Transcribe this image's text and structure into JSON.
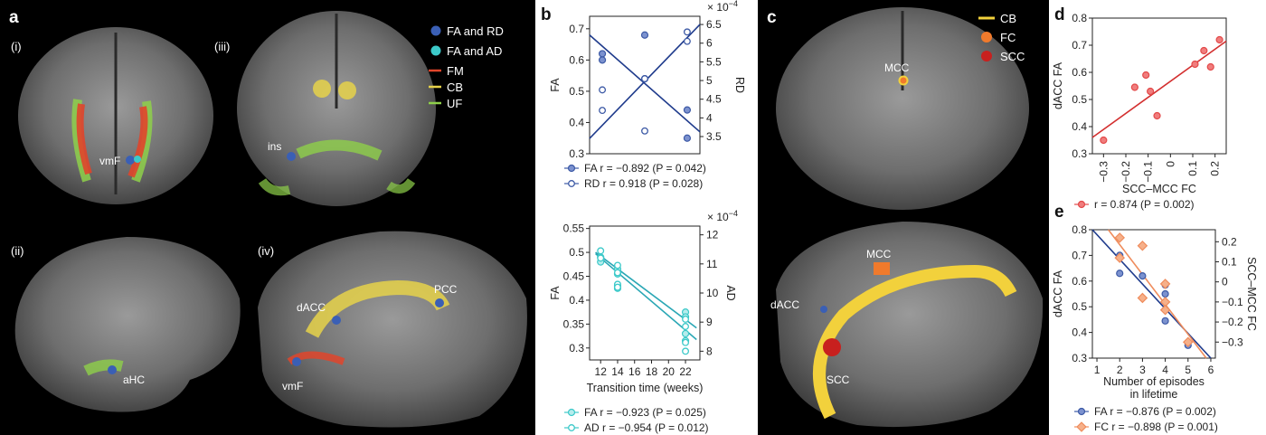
{
  "panel_a": {
    "letter": "a",
    "sublabels": [
      "(i)",
      "(iii)",
      "(ii)",
      "(iv)"
    ],
    "legend": [
      {
        "label": "FA and RD",
        "color": "#3a5fb5",
        "kind": "dot"
      },
      {
        "label": "FA and AD",
        "color": "#3cc9c9",
        "kind": "dot"
      },
      {
        "label": "FM",
        "color": "#e0452b",
        "kind": "line"
      },
      {
        "label": "CB",
        "color": "#e6d24a",
        "kind": "line"
      },
      {
        "label": "UF",
        "color": "#8ed04a",
        "kind": "line"
      }
    ],
    "region_labels": {
      "vmF_i": "vmF",
      "ins": "ins",
      "aHC": "aHC",
      "dACC": "dACC",
      "PCC": "PCC",
      "vmF_iv": "vmF"
    }
  },
  "panel_c": {
    "letter": "c",
    "legend": [
      {
        "label": "CB",
        "color": "#f2d13c",
        "kind": "line"
      },
      {
        "label": "FC",
        "color": "#f07a2c",
        "kind": "dot"
      },
      {
        "label": "SCC",
        "color": "#c8201e",
        "kind": "dot"
      }
    ],
    "region_labels": {
      "MCC_top": "MCC",
      "MCC_mid": "MCC",
      "dACC": "dACC",
      "SCC": "SCC"
    }
  },
  "chart_data": [
    {
      "panel": "b",
      "letter": "b",
      "type": "scatter",
      "xlabel": "",
      "ylabel": "FA",
      "ylabel_right": "RD",
      "right_axis_exponent": "× 10",
      "right_axis_exponent_power": "−4",
      "ylim": [
        0.3,
        0.74
      ],
      "yticks": [
        0.3,
        0.4,
        0.5,
        0.6,
        0.7
      ],
      "ylim_right": [
        3.04,
        6.72
      ],
      "yticks_right": [
        3.5,
        4.0,
        4.5,
        5.0,
        5.5,
        6.0,
        6.5
      ],
      "x": [
        0,
        1,
        2
      ],
      "series": [
        {
          "name": "FA",
          "axis": "left",
          "marker": "filled",
          "color": "#3d5aa6",
          "x": [
            0,
            0,
            1,
            1,
            2,
            2
          ],
          "y": [
            0.62,
            0.6,
            0.68,
            0.54,
            0.44,
            0.35
          ]
        },
        {
          "name": "RD",
          "axis": "right",
          "marker": "open",
          "color": "#3d5aa6",
          "x": [
            0,
            0,
            1,
            1,
            2,
            2
          ],
          "y": [
            4.75,
            4.2,
            3.65,
            5.05,
            6.3,
            6.05
          ]
        }
      ],
      "fits": [
        {
          "axis": "left",
          "color": "#1f3b8c",
          "x": [
            -0.3,
            2.3
          ],
          "y": [
            0.68,
            0.37
          ]
        },
        {
          "axis": "right",
          "color": "#1f3b8c",
          "x": [
            -0.3,
            2.3
          ],
          "y": [
            3.45,
            6.5
          ]
        }
      ],
      "legend": [
        {
          "label": "FA r = −0.892 (P = 0.042)",
          "marker": "filled",
          "color": "#3d5aa6"
        },
        {
          "label": "RD r = 0.918 (P = 0.028)",
          "marker": "open",
          "color": "#3d5aa6"
        }
      ]
    },
    {
      "panel": "b2",
      "type": "scatter",
      "xlabel": "Transition time (weeks)",
      "ylabel": "FA",
      "ylabel_right": "AD",
      "right_axis_exponent": "× 10",
      "right_axis_exponent_power": "−4",
      "xlim": [
        10.7,
        23.7
      ],
      "xticks": [
        12,
        14,
        16,
        18,
        20,
        22
      ],
      "ylim": [
        0.275,
        0.555
      ],
      "yticks": [
        0.3,
        0.35,
        0.4,
        0.45,
        0.5,
        0.55
      ],
      "ylim_right": [
        7.7,
        12.3
      ],
      "yticks_right": [
        8,
        9,
        10,
        11,
        12
      ],
      "series": [
        {
          "name": "FA",
          "axis": "left",
          "marker": "filled",
          "color": "#3cc9c9",
          "x": [
            12,
            12,
            14,
            14,
            14,
            14,
            22,
            22,
            22,
            22
          ],
          "y": [
            0.49,
            0.48,
            0.465,
            0.455,
            0.43,
            0.425,
            0.375,
            0.365,
            0.33,
            0.315
          ]
        },
        {
          "name": "AD",
          "axis": "right",
          "marker": "open",
          "color": "#3cc9c9",
          "x": [
            12,
            12,
            14,
            14,
            14,
            14,
            22,
            22,
            22,
            22
          ],
          "y": [
            11.45,
            11.2,
            10.95,
            10.7,
            10.3,
            10.2,
            9.1,
            8.85,
            8.3,
            8.0
          ]
        }
      ],
      "fits": [
        {
          "axis": "left",
          "color": "#2aa7b5",
          "x": [
            11.4,
            23.3
          ],
          "y": [
            0.5,
            0.342
          ]
        },
        {
          "axis": "right",
          "color": "#2aa7b5",
          "x": [
            11.4,
            23.3
          ],
          "y": [
            11.35,
            8.4
          ]
        }
      ],
      "legend": [
        {
          "label": "FA r = −0.923 (P = 0.025)",
          "marker": "filled",
          "color": "#3cc9c9"
        },
        {
          "label": "AD r = −0.954 (P = 0.012)",
          "marker": "open",
          "color": "#3cc9c9"
        }
      ]
    },
    {
      "panel": "d",
      "letter": "d",
      "type": "scatter",
      "xlabel": "SCC–MCC FC",
      "ylabel": "dACC  FA",
      "xlim": [
        -0.35,
        0.25
      ],
      "xticks": [
        -0.3,
        -0.2,
        -0.1,
        0,
        0.1,
        0.2
      ],
      "xtick_labels": [
        "−0.3",
        "−0.2",
        "−0.1",
        "0",
        "0.1",
        "0.2"
      ],
      "ylim": [
        0.3,
        0.8
      ],
      "yticks": [
        0.3,
        0.4,
        0.5,
        0.6,
        0.7,
        0.8
      ],
      "series": [
        {
          "name": "FC",
          "marker": "filled",
          "color": "#e34a4a",
          "x": [
            -0.3,
            -0.16,
            -0.11,
            -0.09,
            -0.06,
            0.11,
            0.15,
            0.18,
            0.22
          ],
          "y": [
            0.35,
            0.545,
            0.59,
            0.53,
            0.44,
            0.63,
            0.68,
            0.62,
            0.72
          ]
        }
      ],
      "fits": [
        {
          "color": "#d32f2f",
          "x": [
            -0.35,
            0.25
          ],
          "y": [
            0.36,
            0.715
          ]
        }
      ],
      "legend": [
        {
          "label": "r = 0.874 (P = 0.002)",
          "marker": "filled",
          "color": "#e34a4a"
        }
      ]
    },
    {
      "panel": "e",
      "letter": "e",
      "type": "scatter",
      "xlabel": "Number of episodes\nin lifetime",
      "ylabel": "dACC  FA",
      "ylabel_right": "SCC–MCC FC",
      "xlim": [
        0.8,
        6.2
      ],
      "xticks": [
        1,
        2,
        3,
        4,
        5,
        6
      ],
      "ylim": [
        0.3,
        0.8
      ],
      "yticks": [
        0.3,
        0.4,
        0.5,
        0.6,
        0.7,
        0.8
      ],
      "ylim_right": [
        -0.38,
        0.26
      ],
      "yticks_right": [
        -0.3,
        -0.2,
        -0.1,
        0,
        0.1,
        0.2
      ],
      "ytick_labels_right": [
        "−0.3",
        "−0.2",
        "−0.1",
        "0",
        "0.1",
        "0.2"
      ],
      "series": [
        {
          "name": "FA",
          "axis": "left",
          "marker": "filled-circle",
          "color": "#3d5aa6",
          "x": [
            2,
            2,
            3,
            4,
            4,
            4,
            5
          ],
          "y": [
            0.7,
            0.63,
            0.62,
            0.585,
            0.55,
            0.445,
            0.35
          ]
        },
        {
          "name": "FC",
          "axis": "right",
          "marker": "diamond",
          "color": "#ef8c5c",
          "x": [
            2,
            2,
            3,
            3,
            4,
            4,
            4,
            5
          ],
          "y": [
            0.22,
            0.12,
            0.18,
            -0.08,
            -0.01,
            -0.1,
            -0.14,
            -0.3
          ]
        }
      ],
      "fits": [
        {
          "axis": "left",
          "color": "#1f3b8c",
          "x": [
            0.8,
            6.0
          ],
          "y": [
            0.8,
            0.3
          ]
        },
        {
          "axis": "right",
          "color": "#ef8c5c",
          "x": [
            1.5,
            5.8
          ],
          "y": [
            0.26,
            -0.38
          ]
        }
      ],
      "legend": [
        {
          "label": "FA r = −0.876 (P = 0.002)",
          "marker": "filled-circle",
          "color": "#3d5aa6"
        },
        {
          "label": "FC r = −0.898 (P = 0.001)",
          "marker": "diamond",
          "color": "#ef8c5c"
        }
      ]
    }
  ]
}
